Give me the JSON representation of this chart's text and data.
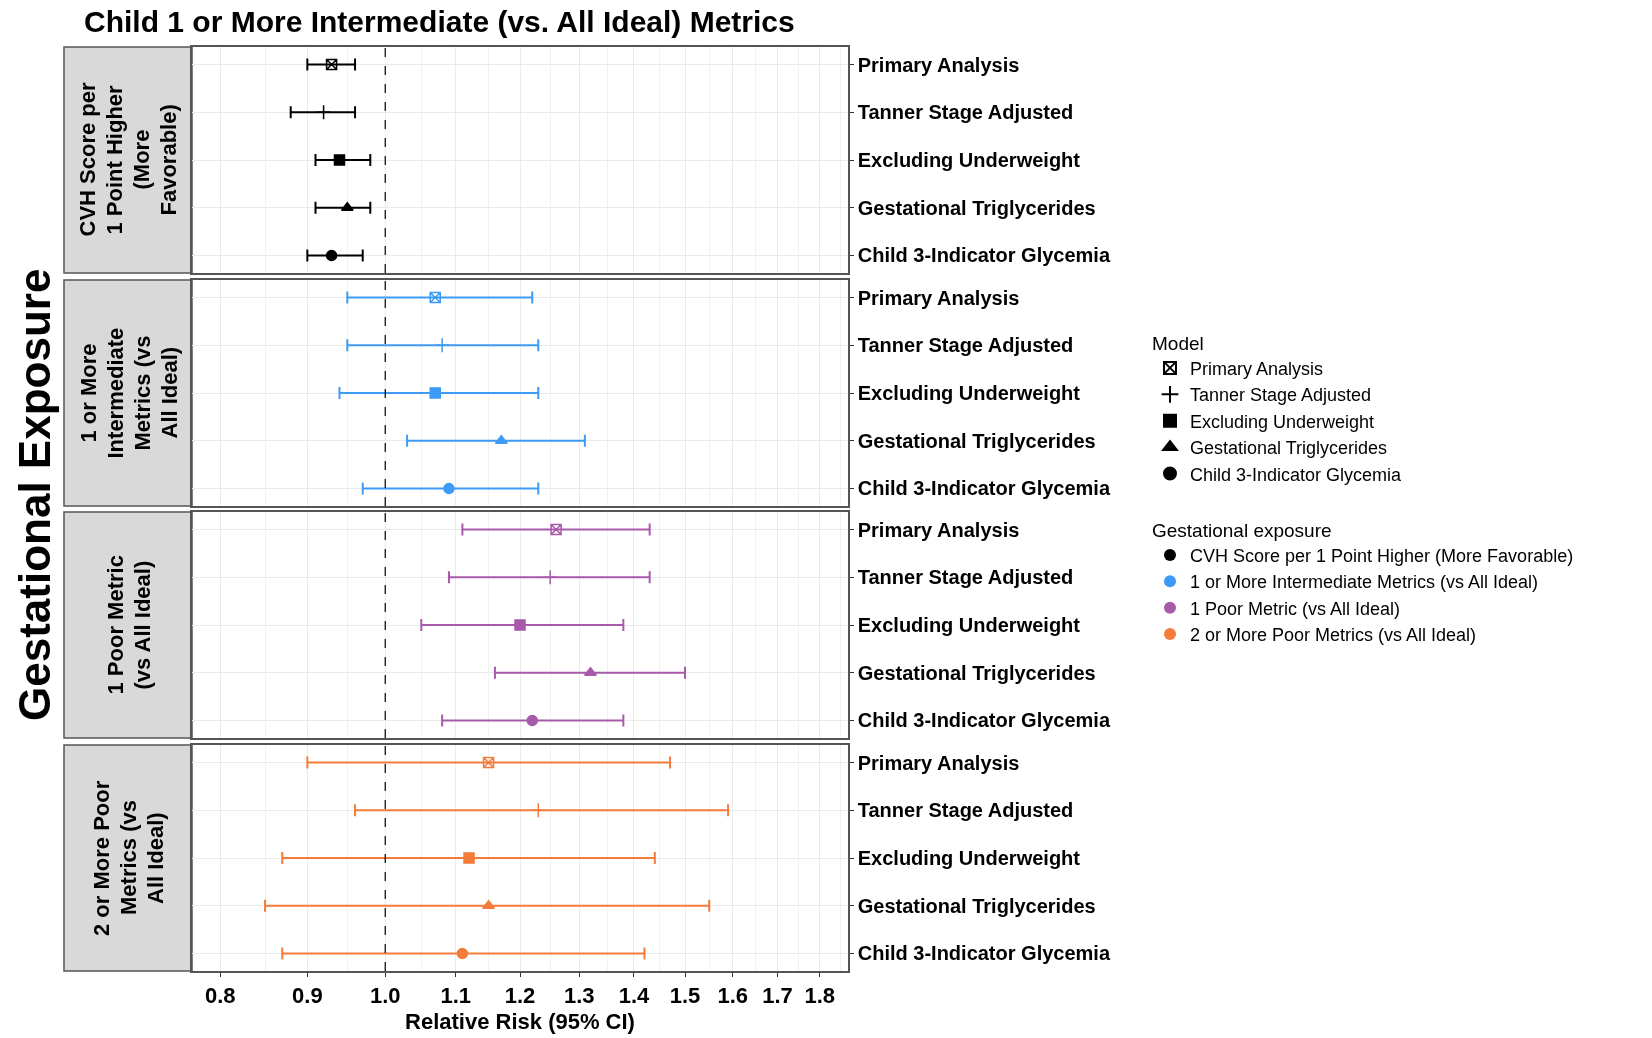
{
  "chart_data": [
    {
      "type": "scatter",
      "orientation": "horizontal",
      "title": "Child 1 or More Intermediate (vs. All Ideal) Metrics",
      "annotations": [
        "Gestational Exposure"
      ],
      "ylabel": "CVH Score per 1 Point Higher (More Favorable)",
      "legend_title": "Model",
      "legend": "right",
      "categories": [
        "Primary Analysis",
        "Tanner Stage Adjusted",
        "Excluding Underweight",
        "Gestational Triglycerides",
        "Child 3-Indicator Glycemia"
      ],
      "series": [
        {
          "name": "CVH Score per 1 Point Higher (More Favorable)",
          "color": "#000000",
          "marker": [
            "square-x",
            "cross",
            "square",
            "triangle",
            "circle"
          ],
          "values": [
            0.93,
            0.92,
            0.94,
            0.95,
            0.93
          ],
          "errors": [
            [
              0.9,
              0.96
            ],
            [
              0.88,
              0.96
            ],
            [
              0.91,
              0.98
            ],
            [
              0.91,
              0.98
            ],
            [
              0.9,
              0.97
            ]
          ]
        }
      ],
      "xlim": [
        0.77,
        1.87
      ],
      "xticks": [
        0.8,
        0.9,
        1.0,
        1.1,
        1.2,
        1.3,
        1.4,
        1.5,
        1.6,
        1.7,
        1.8
      ],
      "log": "x",
      "grid": true,
      "tick_labels": "y",
      "ref_lines": [
        {
          "axis": "x",
          "value": 1,
          "line_style": "dashed",
          "color": "#000000"
        }
      ]
    },
    {
      "type": "scatter",
      "orientation": "horizontal",
      "ylabel": "1 or More Intermediate Metrics (vs All Ideal)",
      "legend_title": "Gestational exposure",
      "legend": "right",
      "categories": [
        "Primary Analysis",
        "Tanner Stage Adjusted",
        "Excluding Underweight",
        "Gestational Triglycerides",
        "Child 3-Indicator Glycemia"
      ],
      "series": [
        {
          "name": "1 or More Intermediate Metrics (vs All Ideal)",
          "color": "#3d9bf5",
          "marker": [
            "square-x",
            "cross",
            "square",
            "triangle",
            "circle"
          ],
          "values": [
            1.07,
            1.08,
            1.07,
            1.17,
            1.09
          ],
          "errors": [
            [
              0.95,
              1.22
            ],
            [
              0.95,
              1.23
            ],
            [
              0.94,
              1.23
            ],
            [
              1.03,
              1.31
            ],
            [
              0.97,
              1.23
            ]
          ]
        }
      ],
      "xlim": [
        0.77,
        1.87
      ],
      "xticks": [
        0.8,
        0.9,
        1.0,
        1.1,
        1.2,
        1.3,
        1.4,
        1.5,
        1.6,
        1.7,
        1.8
      ],
      "log": "x",
      "grid": true,
      "tick_labels": "y",
      "ref_lines": [
        {
          "axis": "x",
          "value": 1,
          "line_style": "dashed",
          "color": "#000000"
        }
      ]
    },
    {
      "type": "scatter",
      "orientation": "horizontal",
      "ylabel": "1 Poor Metric (vs All Ideal)",
      "legend": "right",
      "categories": [
        "Primary Analysis",
        "Tanner Stage Adjusted",
        "Excluding Underweight",
        "Gestational Triglycerides",
        "Child 3-Indicator Glycemia"
      ],
      "series": [
        {
          "name": "1 Poor Metric (vs All Ideal)",
          "color": "#a75aaa",
          "marker": [
            "square-x",
            "cross",
            "square",
            "triangle",
            "circle"
          ],
          "values": [
            1.26,
            1.25,
            1.2,
            1.32,
            1.22
          ],
          "errors": [
            [
              1.11,
              1.43
            ],
            [
              1.09,
              1.43
            ],
            [
              1.05,
              1.38
            ],
            [
              1.16,
              1.5
            ],
            [
              1.08,
              1.38
            ]
          ]
        }
      ],
      "xlim": [
        0.77,
        1.87
      ],
      "xticks": [
        0.8,
        0.9,
        1.0,
        1.1,
        1.2,
        1.3,
        1.4,
        1.5,
        1.6,
        1.7,
        1.8
      ],
      "log": "x",
      "grid": true,
      "tick_labels": "y",
      "ref_lines": [
        {
          "axis": "x",
          "value": 1,
          "line_style": "dashed",
          "color": "#000000"
        }
      ]
    },
    {
      "type": "scatter",
      "orientation": "horizontal",
      "ylabel": "2 or More Poor Metrics (vs All Ideal)",
      "xlabel": "Relative Risk (95% CI)",
      "legend": "right",
      "categories": [
        "Primary Analysis",
        "Tanner Stage Adjusted",
        "Excluding Underweight",
        "Gestational Triglycerides",
        "Child 3-Indicator Glycemia"
      ],
      "series": [
        {
          "name": "2 or More Poor Metrics (vs All Ideal)",
          "color": "#f47b3a",
          "marker": [
            "square-x",
            "cross",
            "square",
            "triangle",
            "circle"
          ],
          "values": [
            1.15,
            1.23,
            1.12,
            1.15,
            1.11
          ],
          "errors": [
            [
              0.9,
              1.47
            ],
            [
              0.96,
              1.59
            ],
            [
              0.87,
              1.44
            ],
            [
              0.85,
              1.55
            ],
            [
              0.87,
              1.42
            ]
          ]
        }
      ],
      "xlim": [
        0.77,
        1.87
      ],
      "xticks": [
        {
          "value": 0.8,
          "label": "0.8"
        },
        {
          "value": 0.9,
          "label": "0.9"
        },
        {
          "value": 1.0,
          "label": "1.0"
        },
        {
          "value": 1.1,
          "label": "1.1"
        },
        {
          "value": 1.2,
          "label": "1.2"
        },
        {
          "value": 1.3,
          "label": "1.3"
        },
        {
          "value": 1.4,
          "label": "1.4"
        },
        {
          "value": 1.5,
          "label": "1.5"
        },
        {
          "value": 1.6,
          "label": "1.6"
        },
        {
          "value": 1.7,
          "label": "1.7"
        },
        {
          "value": 1.8,
          "label": "1.8"
        }
      ],
      "log": "x",
      "grid": true,
      "ref_lines": [
        {
          "axis": "x",
          "value": 1,
          "line_style": "dashed",
          "color": "#000000"
        }
      ]
    }
  ]
}
